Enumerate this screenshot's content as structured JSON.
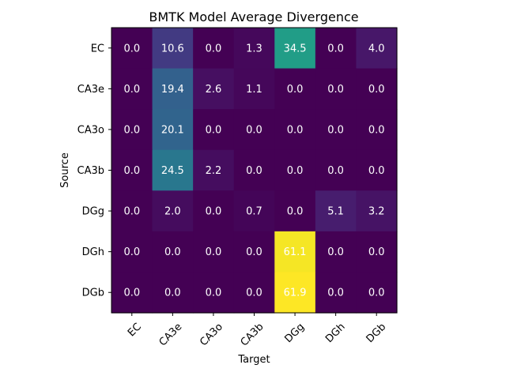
{
  "chart_data": {
    "type": "heatmap",
    "title": "BMTK Model Average Divergence",
    "xlabel": "Target",
    "ylabel": "Source",
    "x_categories": [
      "EC",
      "CA3e",
      "CA3o",
      "CA3b",
      "DGg",
      "DGh",
      "DGb"
    ],
    "y_categories": [
      "EC",
      "CA3e",
      "CA3o",
      "CA3b",
      "DGg",
      "DGh",
      "DGb"
    ],
    "values": [
      [
        0.0,
        10.6,
        0.0,
        1.3,
        34.5,
        0.0,
        4.0
      ],
      [
        0.0,
        19.4,
        2.6,
        1.1,
        0.0,
        0.0,
        0.0
      ],
      [
        0.0,
        20.1,
        0.0,
        0.0,
        0.0,
        0.0,
        0.0
      ],
      [
        0.0,
        24.5,
        2.2,
        0.0,
        0.0,
        0.0,
        0.0
      ],
      [
        0.0,
        2.0,
        0.0,
        0.7,
        0.0,
        5.1,
        3.2
      ],
      [
        0.0,
        0.0,
        0.0,
        0.0,
        61.1,
        0.0,
        0.0
      ],
      [
        0.0,
        0.0,
        0.0,
        0.0,
        61.9,
        0.0,
        0.0
      ]
    ],
    "colormap": "viridis",
    "value_range": [
      0.0,
      61.9
    ],
    "label_color_light": "#ffffff",
    "grid": false
  }
}
